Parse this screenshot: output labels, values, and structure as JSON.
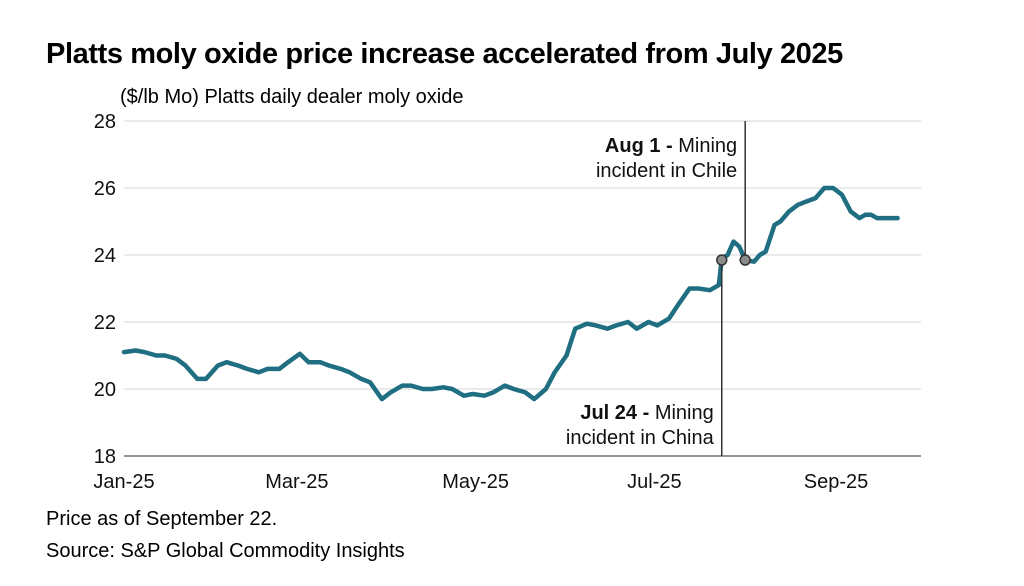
{
  "header": {
    "title": "Platts moly oxide price increase accelerated from July 2025",
    "subtitle": "($/lb Mo) Platts daily dealer moly oxide"
  },
  "footer": {
    "note": "Price as of September 22.",
    "source": "Source: S&P Global Commodity Insights"
  },
  "colors": {
    "line": "#1f6e82",
    "grid": "#d4d4d4",
    "annotation": "#333333",
    "marker_fill": "#8c8c8c"
  },
  "chart_data": {
    "type": "line",
    "title": "Platts moly oxide price increase accelerated from July 2025",
    "ylabel": "($/lb Mo) Platts daily dealer moly oxide",
    "xlabel": "",
    "ylim": [
      18,
      28
    ],
    "yticks": [
      18,
      20,
      22,
      24,
      26,
      28
    ],
    "xlim": [
      "2025-01-01",
      "2025-09-30"
    ],
    "xticks": [
      {
        "date": "2025-01-01",
        "label": "Jan-25"
      },
      {
        "date": "2025-03-01",
        "label": "Mar-25"
      },
      {
        "date": "2025-05-01",
        "label": "May-25"
      },
      {
        "date": "2025-07-01",
        "label": "Jul-25"
      },
      {
        "date": "2025-09-01",
        "label": "Sep-25"
      }
    ],
    "grid": "horizontal",
    "series": [
      {
        "x": [
          "2025-01-01",
          "2025-01-05",
          "2025-01-08",
          "2025-01-12",
          "2025-01-15",
          "2025-01-19",
          "2025-01-22",
          "2025-01-26",
          "2025-01-29",
          "2025-02-02",
          "2025-02-05",
          "2025-02-09",
          "2025-02-12",
          "2025-02-16",
          "2025-02-19",
          "2025-02-23",
          "2025-02-26",
          "2025-03-02",
          "2025-03-05",
          "2025-03-09",
          "2025-03-12",
          "2025-03-16",
          "2025-03-19",
          "2025-03-23",
          "2025-03-26",
          "2025-03-30",
          "2025-04-02",
          "2025-04-06",
          "2025-04-09",
          "2025-04-13",
          "2025-04-16",
          "2025-04-20",
          "2025-04-23",
          "2025-04-27",
          "2025-04-30",
          "2025-05-04",
          "2025-05-07",
          "2025-05-11",
          "2025-05-14",
          "2025-05-18",
          "2025-05-21",
          "2025-05-25",
          "2025-05-28",
          "2025-06-01",
          "2025-06-04",
          "2025-06-08",
          "2025-06-11",
          "2025-06-15",
          "2025-06-18",
          "2025-06-22",
          "2025-06-25",
          "2025-06-29",
          "2025-07-02",
          "2025-07-06",
          "2025-07-09",
          "2025-07-13",
          "2025-07-16",
          "2025-07-20",
          "2025-07-23",
          "2025-07-24",
          "2025-07-26",
          "2025-07-28",
          "2025-07-30",
          "2025-08-01",
          "2025-08-04",
          "2025-08-06",
          "2025-08-08",
          "2025-08-11",
          "2025-08-13",
          "2025-08-16",
          "2025-08-19",
          "2025-08-22",
          "2025-08-25",
          "2025-08-28",
          "2025-08-31",
          "2025-09-03",
          "2025-09-06",
          "2025-09-09",
          "2025-09-11",
          "2025-09-13",
          "2025-09-15",
          "2025-09-18",
          "2025-09-22"
        ],
        "values": [
          21.1,
          21.15,
          21.1,
          21.0,
          21.0,
          20.9,
          20.7,
          20.3,
          20.3,
          20.7,
          20.8,
          20.7,
          20.6,
          20.5,
          20.6,
          20.6,
          20.8,
          21.05,
          20.8,
          20.8,
          20.7,
          20.6,
          20.5,
          20.3,
          20.2,
          19.7,
          19.9,
          20.1,
          20.1,
          20.0,
          20.0,
          20.05,
          20.0,
          19.8,
          19.85,
          19.8,
          19.9,
          20.1,
          20.0,
          19.9,
          19.7,
          20.0,
          20.5,
          21.0,
          21.8,
          21.95,
          21.9,
          21.8,
          21.9,
          22.0,
          21.8,
          22.0,
          21.9,
          22.1,
          22.5,
          23.0,
          23.0,
          22.95,
          23.1,
          23.9,
          24.0,
          24.4,
          24.25,
          23.85,
          23.8,
          24.0,
          24.1,
          24.9,
          25.0,
          25.3,
          25.5,
          25.6,
          25.7,
          26.0,
          26.0,
          25.8,
          25.3,
          25.1,
          25.2,
          25.2,
          25.1,
          25.1,
          25.1
        ]
      }
    ],
    "annotations": [
      {
        "date": "2025-07-24",
        "value": 23.85,
        "label_bold": "Jul 24 -",
        "label_rest": " Mining",
        "label_line2": "incident in China",
        "placement": "below"
      },
      {
        "date": "2025-08-01",
        "value": 23.85,
        "label_bold": "Aug 1 -",
        "label_rest": " Mining",
        "label_line2": "incident in Chile",
        "placement": "above"
      }
    ]
  }
}
